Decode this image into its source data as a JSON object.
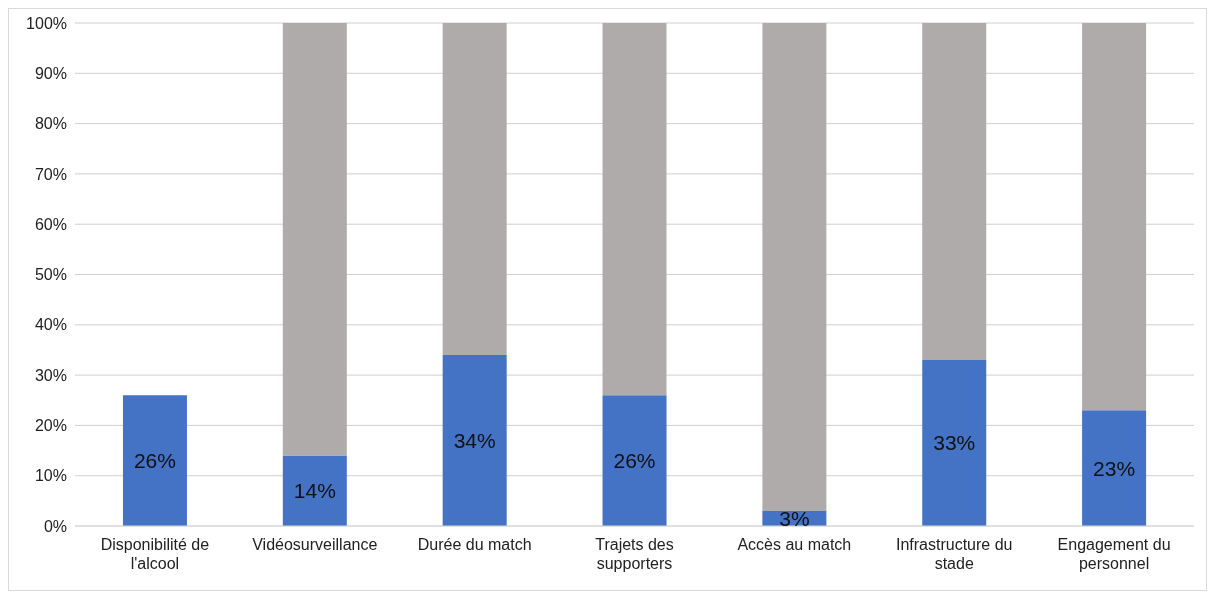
{
  "chart_data": {
    "type": "bar",
    "stacked": true,
    "categories": [
      "Disponibilité de l'alcool",
      "Vidéosurveillance",
      "Durée du match",
      "Trajets des supporters",
      "Accès au match",
      "Infrastructure du stade",
      "Engagement du personnel"
    ],
    "series": [
      {
        "color": "#4472c4",
        "values": [
          26,
          14,
          34,
          26,
          3,
          33,
          23
        ],
        "value_labels": [
          "26%",
          "14%",
          "34%",
          "26%",
          "3%",
          "33%",
          "23%"
        ]
      },
      {
        "color": "#afabab",
        "values": [
          0,
          86,
          66,
          74,
          97,
          67,
          77
        ]
      }
    ],
    "ylim": [
      0,
      100
    ],
    "yticks": [
      {
        "value": 0,
        "label": "0%"
      },
      {
        "value": 10,
        "label": "10%"
      },
      {
        "value": 20,
        "label": "20%"
      },
      {
        "value": 30,
        "label": "30%"
      },
      {
        "value": 40,
        "label": "40%"
      },
      {
        "value": 50,
        "label": "50%"
      },
      {
        "value": 60,
        "label": "60%"
      },
      {
        "value": 70,
        "label": "70%"
      },
      {
        "value": 80,
        "label": "80%"
      },
      {
        "value": 90,
        "label": "90%"
      },
      {
        "value": 100,
        "label": "100%"
      }
    ],
    "grid": "y",
    "legend": false
  }
}
